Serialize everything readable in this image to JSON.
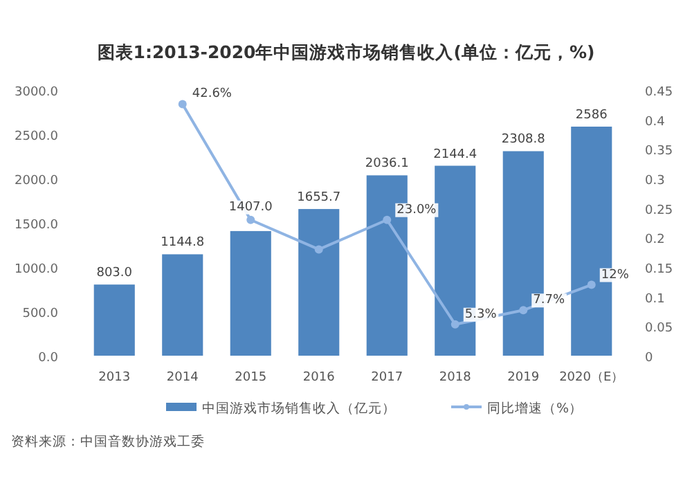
{
  "chart_data": {
    "type": "bar",
    "title": "图表1:2013-2020年中国游戏市场销售收入(单位：亿元，%)",
    "categories": [
      "2013",
      "2014",
      "2015",
      "2016",
      "2017",
      "2018",
      "2019",
      "2020（E）"
    ],
    "series": [
      {
        "name": "中国游戏市场销售收入（亿元）",
        "color": "#4f86c0",
        "values": [
          803.0,
          1144.8,
          1407.0,
          1655.7,
          2036.1,
          2144.4,
          2308.8,
          2586
        ],
        "value_labels": [
          "803.0",
          "1144.8",
          "1407.0",
          "1655.7",
          "2036.1",
          "2144.4",
          "2308.8",
          "2586"
        ]
      },
      {
        "name": "同比增速（%）",
        "type": "line",
        "axis": "y2",
        "color": "#8fb4e3",
        "marker": "circle",
        "values": [
          null,
          0.426,
          0.23,
          0.18,
          0.23,
          0.053,
          0.077,
          0.12
        ],
        "value_labels": [
          null,
          "42.6%",
          null,
          null,
          "23.0%",
          "5.3%",
          "7.7%",
          "12%"
        ]
      }
    ],
    "ylim": [
      0,
      3000
    ],
    "yticks": [
      {
        "value": 0,
        "label": "0.0"
      },
      {
        "value": 500,
        "label": "500.0"
      },
      {
        "value": 1000,
        "label": "1000.0"
      },
      {
        "value": 1500,
        "label": "1500.0"
      },
      {
        "value": 2000,
        "label": "2000.0"
      },
      {
        "value": 2500,
        "label": "2500.0"
      },
      {
        "value": 3000,
        "label": "3000.0"
      }
    ],
    "y2lim": [
      0,
      0.45
    ],
    "y2ticks": [
      0,
      0.05,
      0.1,
      0.15,
      0.2,
      0.25,
      0.3,
      0.35,
      0.4,
      0.45
    ],
    "grid": false,
    "legend": "bottom",
    "annotations": [
      "资料来源：中国音数协游戏工委"
    ]
  }
}
